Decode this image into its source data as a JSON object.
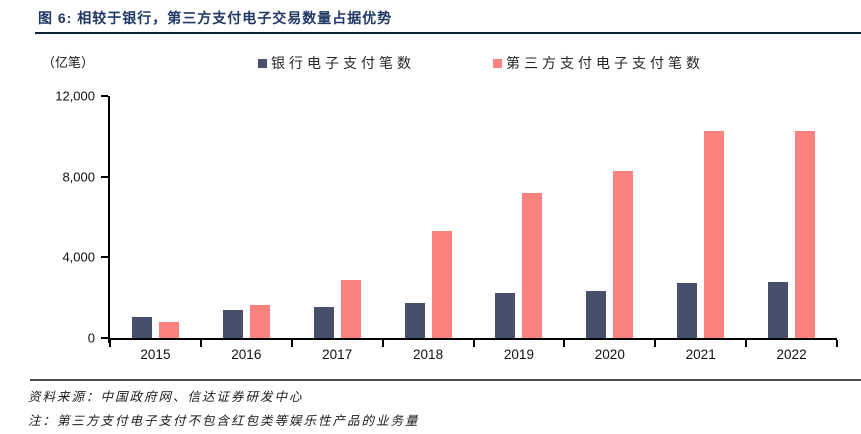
{
  "figure": {
    "title": "图 6: 相较于银行，第三方支付电子交易数量占据优势",
    "source_line": "资料来源：中国政府网、信达证券研发中心",
    "note_line": "注：第三方支付电子支付不包含红包类等娱乐性产品的业务量"
  },
  "chart_data": {
    "type": "bar",
    "title": "图 6: 相较于银行，第三方支付电子交易数量占据优势",
    "unit_label": "（亿笔）",
    "ylabel": "亿笔",
    "categories": [
      "2015",
      "2016",
      "2017",
      "2018",
      "2019",
      "2020",
      "2021",
      "2022"
    ],
    "series": [
      {
        "name": "银行电子支付笔数",
        "color": "#47506B",
        "values": [
          1050,
          1400,
          1520,
          1750,
          2230,
          2350,
          2750,
          2790
        ]
      },
      {
        "name": "第三方支付电子支付笔数",
        "color": "#FC827F",
        "values": [
          820,
          1640,
          2870,
          5300,
          7200,
          8300,
          10280,
          10290
        ]
      }
    ],
    "ylim": [
      0,
      12000
    ],
    "yticks": [
      {
        "value": 0,
        "label": "0"
      },
      {
        "value": 4000,
        "label": "4,000"
      },
      {
        "value": 8000,
        "label": "8,000"
      },
      {
        "value": 12000,
        "label": "12,000"
      }
    ],
    "legend_position": "top",
    "grid": false
  },
  "colors": {
    "title_navy": "#1F3864",
    "title_rule": "#0E2240",
    "footer_rule": "#4D4D4D",
    "axis": "#000000",
    "bank_bar": "#47506B",
    "thirdparty_bar": "#FC827F"
  }
}
